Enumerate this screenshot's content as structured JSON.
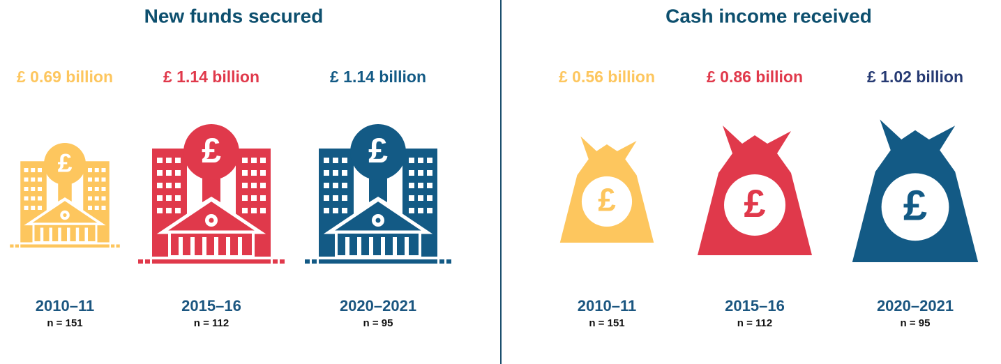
{
  "panels": [
    {
      "title": "New funds secured",
      "items": [
        {
          "value": "£ 0.69 billion",
          "year": "2010–11",
          "n": "n = 151"
        },
        {
          "value": "£ 1.14 billion",
          "year": "2015–16",
          "n": "n = 112"
        },
        {
          "value": "£ 1.14 billion",
          "year": "2020–2021",
          "n": "n = 95"
        }
      ]
    },
    {
      "title": "Cash income received",
      "items": [
        {
          "value": "£ 0.56 billion",
          "year": "2010–11",
          "n": "n = 151"
        },
        {
          "value": "£ 0.86 billion",
          "year": "2015–16",
          "n": "n = 112"
        },
        {
          "value": "£ 1.02 billion",
          "year": "2020–2021",
          "n": "n = 95"
        }
      ]
    }
  ]
}
